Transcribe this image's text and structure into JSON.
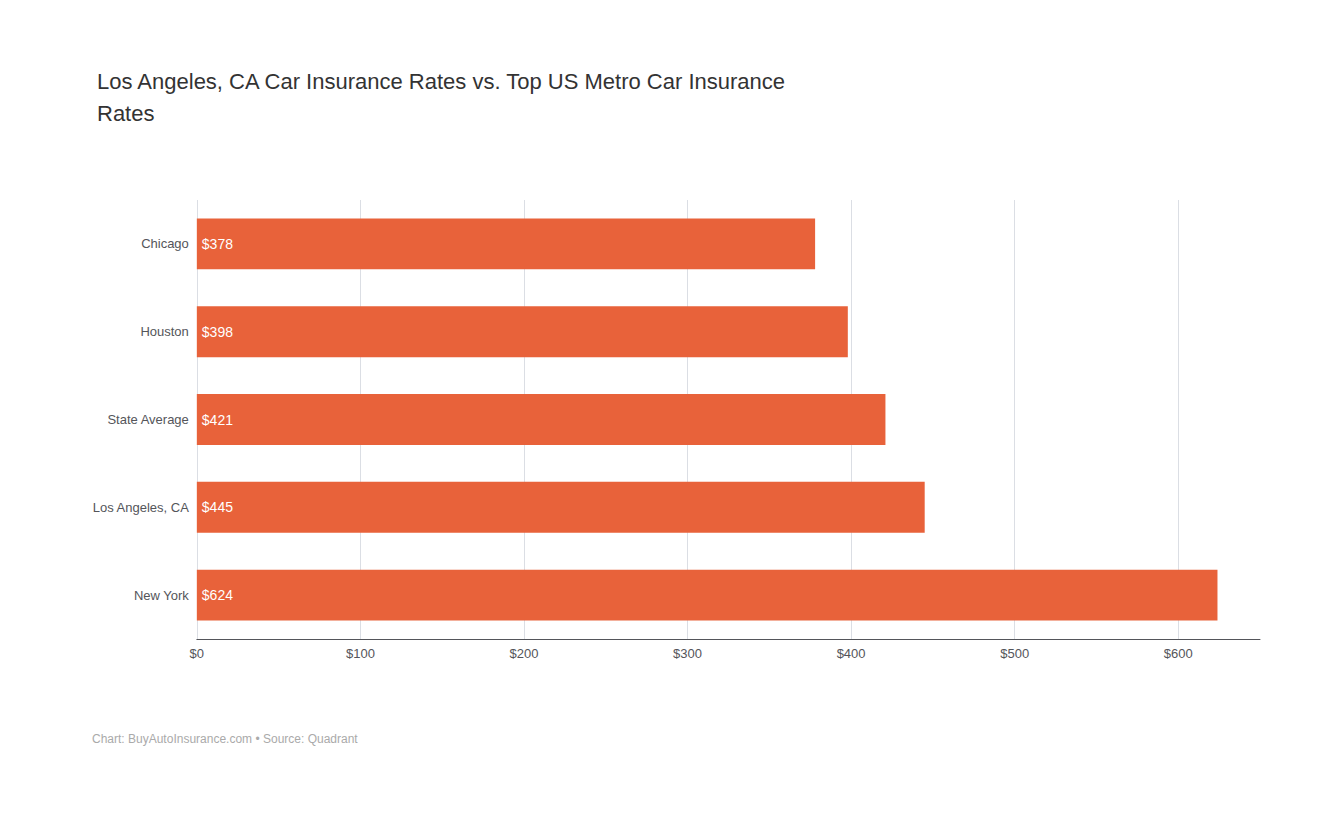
{
  "chart_data": {
    "type": "bar",
    "orientation": "horizontal",
    "title": "Los Angeles, CA Car Insurance Rates vs. Top US Metro Car Insurance\nRates",
    "categories": [
      "New York",
      "Los Angeles, CA",
      "State Average",
      "Houston",
      "Chicago"
    ],
    "values": [
      624,
      445,
      421,
      398,
      378
    ],
    "value_labels": [
      "$624",
      "$445",
      "$421",
      "$398",
      "$378"
    ],
    "data_labels": true,
    "color": "#E8623A",
    "xlim": [
      0,
      650
    ],
    "xticks": [
      {
        "value": 0,
        "label": "$0"
      },
      {
        "value": 100,
        "label": "$100"
      },
      {
        "value": 200,
        "label": "$200"
      },
      {
        "value": 300,
        "label": "$300"
      },
      {
        "value": 400,
        "label": "$400"
      },
      {
        "value": 500,
        "label": "$500"
      },
      {
        "value": 600,
        "label": "$600"
      }
    ],
    "grid": true,
    "annotation": "Chart: BuyAutoInsurance.com • Source: Quadrant"
  }
}
